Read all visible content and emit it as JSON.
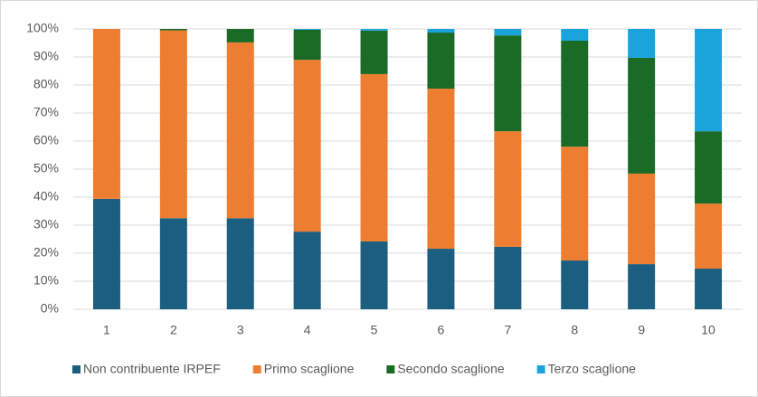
{
  "chart_data": {
    "type": "stacked_bar_100",
    "categories": [
      "1",
      "2",
      "3",
      "4",
      "5",
      "6",
      "7",
      "8",
      "9",
      "10"
    ],
    "series": [
      {
        "name": "Non contribuente IRPEF",
        "color": "#1b5e80",
        "values": [
          39.4,
          32.5,
          32.5,
          27.7,
          24.2,
          21.6,
          22.3,
          17.4,
          16.1,
          14.5
        ]
      },
      {
        "name": "Primo scaglione",
        "color": "#ed7d31",
        "values": [
          60.6,
          67.0,
          62.7,
          61.3,
          59.7,
          57.1,
          41.2,
          40.6,
          32.3,
          23.2
        ]
      },
      {
        "name": "Secondo scaglione",
        "color": "#1a6b25",
        "values": [
          0,
          0.5,
          4.8,
          10.7,
          15.5,
          20.0,
          34.2,
          37.8,
          41.3,
          25.8
        ]
      },
      {
        "name": "Terzo scaglione",
        "color": "#1ba3dc",
        "values": [
          0,
          0,
          0,
          0.3,
          0.6,
          1.3,
          2.3,
          4.2,
          10.3,
          36.5
        ]
      }
    ],
    "ylim": [
      0,
      100
    ],
    "yticks": [
      {
        "value": 0,
        "label": "0%"
      },
      {
        "value": 10,
        "label": "10%"
      },
      {
        "value": 20,
        "label": "20%"
      },
      {
        "value": 30,
        "label": "30%"
      },
      {
        "value": 40,
        "label": "40%"
      },
      {
        "value": 50,
        "label": "50%"
      },
      {
        "value": 60,
        "label": "60%"
      },
      {
        "value": 70,
        "label": "70%"
      },
      {
        "value": 80,
        "label": "80%"
      },
      {
        "value": 90,
        "label": "90%"
      },
      {
        "value": 100,
        "label": "100%"
      }
    ],
    "grid": true,
    "legend": "bottom"
  }
}
